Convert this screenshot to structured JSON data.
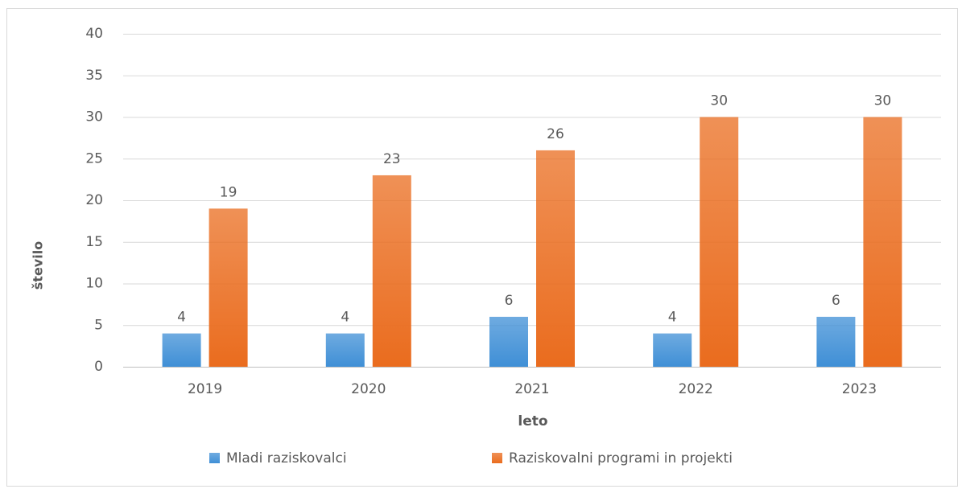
{
  "chart_data": {
    "type": "bar",
    "x_label": "leto",
    "y_label": "število",
    "categories": [
      "2019",
      "2020",
      "2021",
      "2022",
      "2023"
    ],
    "series": [
      {
        "name": "Mladi raziskovalci",
        "color": "#3f8fd6",
        "values": [
          4,
          4,
          6,
          4,
          6
        ]
      },
      {
        "name": "Raziskovalni programi in projekti",
        "color": "#ea6c1e",
        "values": [
          19,
          23,
          26,
          30,
          30
        ]
      }
    ],
    "ylim": [
      0,
      40
    ],
    "yticks": [
      0,
      5,
      10,
      15,
      20,
      25,
      30,
      35,
      40
    ],
    "grid": true,
    "legend": "bottom"
  }
}
